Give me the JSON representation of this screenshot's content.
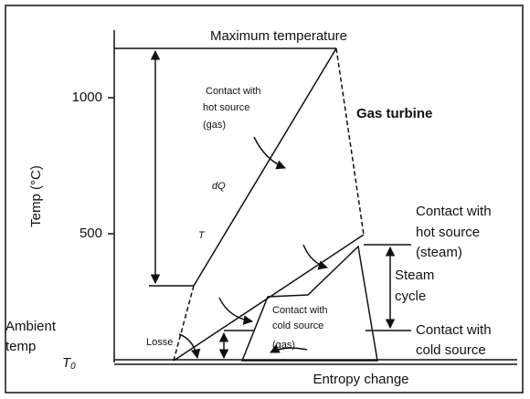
{
  "title": "Maximum temperature",
  "axis": {
    "y_label": "Temp (°C)",
    "ticks": [
      "1000",
      "500"
    ],
    "x_label": "Entropy change",
    "ambient": [
      "Ambient",
      "temp"
    ],
    "t0": "T",
    "t0_sub": "0"
  },
  "gas": {
    "contact": [
      "Contact with",
      "hot source",
      "(gas)"
    ],
    "name": "Gas turbine",
    "dq": "dQ",
    "t": "T",
    "losses": "Losse"
  },
  "steam": {
    "hot": [
      "Contact with",
      "hot source",
      "(steam)"
    ],
    "cycle": [
      "Steam",
      "cycle"
    ],
    "cold": [
      "Contact with",
      "cold source"
    ],
    "cold_gas": [
      "Contact with",
      "cold source",
      "(gas)"
    ]
  }
}
